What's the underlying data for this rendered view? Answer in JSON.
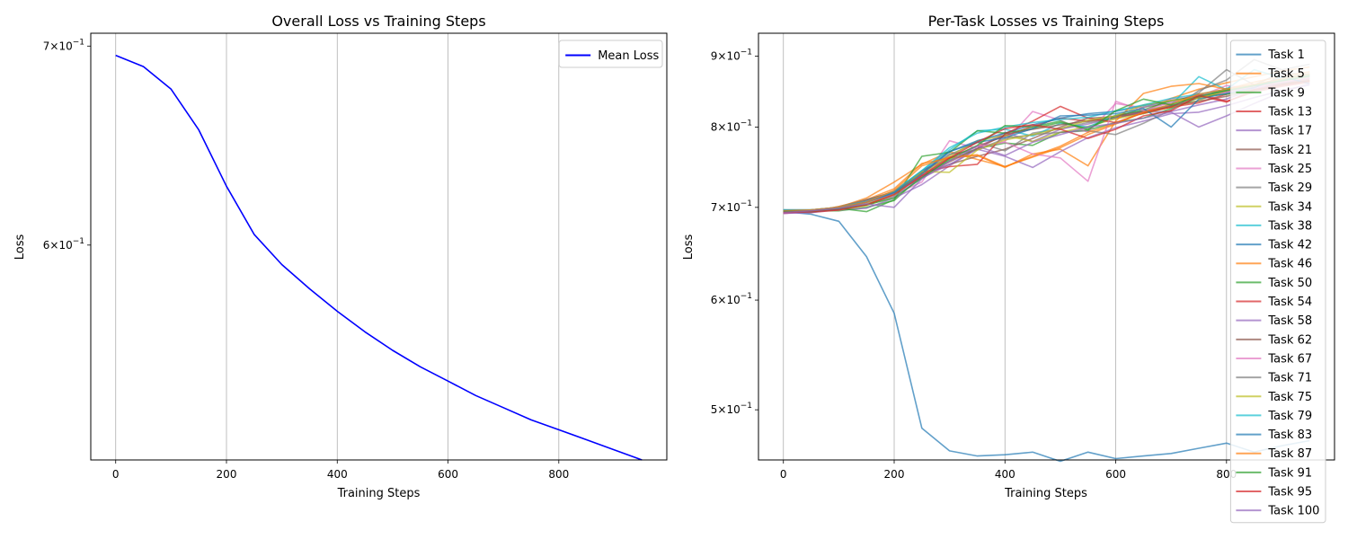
{
  "chart_data": [
    {
      "type": "line",
      "title": "Overall Loss vs Training Steps",
      "xlabel": "Training Steps",
      "ylabel": "Loss",
      "yscale": "log",
      "xlim": [
        -45,
        995
      ],
      "ylim": [
        0.508,
        0.707
      ],
      "xticks": [
        0,
        200,
        400,
        600,
        800
      ],
      "xtick_labels": [
        "0",
        "200",
        "400",
        "600",
        "800"
      ],
      "yticks": [
        {
          "value": 0.6,
          "base": "6",
          "exp": "−1"
        },
        {
          "value": 0.7,
          "base": "7",
          "exp": "−1"
        }
      ],
      "grid": "x-axis vertical lines",
      "legend": "top-right",
      "x": [
        0,
        50,
        100,
        150,
        200,
        250,
        300,
        350,
        400,
        450,
        500,
        550,
        600,
        650,
        700,
        750,
        800,
        850,
        900,
        950
      ],
      "series": [
        {
          "name": "Mean Loss",
          "color": "#0000ff",
          "values": [
            0.695,
            0.689,
            0.677,
            0.656,
            0.628,
            0.605,
            0.591,
            0.58,
            0.57,
            0.561,
            0.553,
            0.546,
            0.54,
            0.534,
            0.529,
            0.524,
            0.52,
            0.516,
            0.512,
            0.508
          ]
        }
      ]
    },
    {
      "type": "line",
      "title": "Per-Task Losses vs Training Steps",
      "xlabel": "Training Steps",
      "ylabel": "Loss",
      "yscale": "log",
      "xlim": [
        -45,
        995
      ],
      "ylim": [
        0.46,
        0.935
      ],
      "xticks": [
        0,
        200,
        400,
        600,
        800
      ],
      "xtick_labels": [
        "0",
        "200",
        "400",
        "600",
        "800"
      ],
      "yticks": [
        {
          "value": 0.5,
          "base": "5",
          "exp": "−1"
        },
        {
          "value": 0.6,
          "base": "6",
          "exp": "−1"
        },
        {
          "value": 0.7,
          "base": "7",
          "exp": "−1"
        },
        {
          "value": 0.8,
          "base": "8",
          "exp": "−1"
        },
        {
          "value": 0.9,
          "base": "9",
          "exp": "−1"
        }
      ],
      "grid": "x-axis vertical lines",
      "legend": "top-right",
      "x": [
        0,
        50,
        100,
        150,
        200,
        250,
        300,
        350,
        400,
        450,
        500,
        550,
        600,
        650,
        700,
        750,
        800,
        850,
        900,
        950
      ],
      "series": [
        {
          "name": "Task 1",
          "color": "#1f77b4",
          "values": [
            0.695,
            0.692,
            0.684,
            0.645,
            0.587,
            0.485,
            0.467,
            0.463,
            0.464,
            0.466,
            0.459,
            0.466,
            0.461,
            0.463,
            0.465,
            0.469,
            0.473,
            0.466,
            0.471,
            0.475
          ]
        },
        {
          "name": "Task 5",
          "color": "#ff7f0e",
          "values": [
            0.696,
            0.697,
            0.7,
            0.711,
            0.73,
            0.752,
            0.768,
            0.758,
            0.749,
            0.761,
            0.773,
            0.79,
            0.804,
            0.82,
            0.839,
            0.852,
            0.861,
            0.87,
            0.878,
            0.884
          ]
        },
        {
          "name": "Task 9",
          "color": "#2ca02c",
          "values": [
            0.694,
            0.696,
            0.696,
            0.7,
            0.708,
            0.738,
            0.757,
            0.772,
            0.779,
            0.776,
            0.793,
            0.796,
            0.806,
            0.812,
            0.825,
            0.84,
            0.853,
            0.858,
            0.866,
            0.87
          ]
        },
        {
          "name": "Task 13",
          "color": "#d62728",
          "values": [
            0.693,
            0.695,
            0.698,
            0.706,
            0.716,
            0.744,
            0.76,
            0.775,
            0.788,
            0.801,
            0.812,
            0.808,
            0.812,
            0.821,
            0.827,
            0.833,
            0.845,
            0.852,
            0.86,
            0.867
          ]
        },
        {
          "name": "Task 17",
          "color": "#9467bd",
          "values": [
            0.695,
            0.697,
            0.697,
            0.699,
            0.711,
            0.727,
            0.75,
            0.772,
            0.793,
            0.781,
            0.797,
            0.804,
            0.813,
            0.82,
            0.821,
            0.83,
            0.838,
            0.852,
            0.861,
            0.868
          ]
        },
        {
          "name": "Task 21",
          "color": "#8c564b",
          "values": [
            0.696,
            0.694,
            0.7,
            0.709,
            0.718,
            0.738,
            0.752,
            0.762,
            0.771,
            0.785,
            0.8,
            0.812,
            0.814,
            0.818,
            0.828,
            0.84,
            0.848,
            0.856,
            0.86,
            0.864
          ]
        },
        {
          "name": "Task 25",
          "color": "#e377c2",
          "values": [
            0.693,
            0.695,
            0.699,
            0.705,
            0.715,
            0.73,
            0.782,
            0.772,
            0.781,
            0.821,
            0.809,
            0.793,
            0.832,
            0.826,
            0.838,
            0.842,
            0.857,
            0.853,
            0.865,
            0.87
          ]
        },
        {
          "name": "Task 29",
          "color": "#7f7f7f",
          "values": [
            0.695,
            0.695,
            0.701,
            0.709,
            0.717,
            0.736,
            0.764,
            0.78,
            0.769,
            0.792,
            0.798,
            0.806,
            0.812,
            0.827,
            0.832,
            0.847,
            0.88,
            0.858,
            0.876,
            0.872
          ]
        },
        {
          "name": "Task 34",
          "color": "#bcbd22",
          "values": [
            0.694,
            0.697,
            0.697,
            0.702,
            0.713,
            0.74,
            0.762,
            0.782,
            0.789,
            0.781,
            0.793,
            0.801,
            0.811,
            0.818,
            0.827,
            0.836,
            0.851,
            0.856,
            0.863,
            0.869
          ]
        },
        {
          "name": "Task 38",
          "color": "#17becf",
          "values": [
            0.697,
            0.696,
            0.698,
            0.706,
            0.719,
            0.744,
            0.77,
            0.795,
            0.797,
            0.788,
            0.805,
            0.8,
            0.816,
            0.822,
            0.83,
            0.87,
            0.851,
            0.857,
            0.866,
            0.872
          ]
        },
        {
          "name": "Task 42",
          "color": "#1f77b4",
          "values": [
            0.697,
            0.697,
            0.7,
            0.706,
            0.718,
            0.742,
            0.768,
            0.782,
            0.792,
            0.803,
            0.812,
            0.818,
            0.821,
            0.829,
            0.835,
            0.842,
            0.85,
            0.857,
            0.864,
            0.871
          ]
        },
        {
          "name": "Task 46",
          "color": "#ff7f0e",
          "values": [
            0.694,
            0.695,
            0.701,
            0.709,
            0.722,
            0.753,
            0.76,
            0.763,
            0.748,
            0.765,
            0.771,
            0.75,
            0.808,
            0.846,
            0.856,
            0.86,
            0.852,
            0.862,
            0.87,
            0.877
          ]
        },
        {
          "name": "Task 50",
          "color": "#2ca02c",
          "values": [
            0.696,
            0.696,
            0.699,
            0.695,
            0.709,
            0.762,
            0.767,
            0.795,
            0.792,
            0.798,
            0.806,
            0.798,
            0.815,
            0.823,
            0.836,
            0.842,
            0.845,
            0.85,
            0.858,
            0.864
          ]
        },
        {
          "name": "Task 54",
          "color": "#d62728",
          "values": [
            0.695,
            0.694,
            0.697,
            0.708,
            0.719,
            0.742,
            0.749,
            0.752,
            0.791,
            0.808,
            0.828,
            0.812,
            0.806,
            0.819,
            0.827,
            0.845,
            0.835,
            0.848,
            0.856,
            0.862
          ]
        },
        {
          "name": "Task 58",
          "color": "#9467bd",
          "values": [
            0.693,
            0.694,
            0.698,
            0.704,
            0.713,
            0.735,
            0.752,
            0.771,
            0.762,
            0.748,
            0.768,
            0.786,
            0.799,
            0.808,
            0.818,
            0.82,
            0.829,
            0.84,
            0.85,
            0.858
          ]
        },
        {
          "name": "Task 62",
          "color": "#8c564b",
          "values": [
            0.696,
            0.695,
            0.699,
            0.703,
            0.716,
            0.737,
            0.755,
            0.772,
            0.79,
            0.797,
            0.803,
            0.808,
            0.815,
            0.821,
            0.829,
            0.835,
            0.842,
            0.85,
            0.858,
            0.865
          ]
        },
        {
          "name": "Task 67",
          "color": "#e377c2",
          "values": [
            0.695,
            0.696,
            0.697,
            0.706,
            0.716,
            0.738,
            0.76,
            0.775,
            0.78,
            0.765,
            0.76,
            0.731,
            0.835,
            0.822,
            0.834,
            0.842,
            0.848,
            0.855,
            0.862,
            0.868
          ]
        },
        {
          "name": "Task 71",
          "color": "#7f7f7f",
          "values": [
            0.697,
            0.697,
            0.7,
            0.709,
            0.718,
            0.741,
            0.765,
            0.77,
            0.785,
            0.79,
            0.793,
            0.795,
            0.79,
            0.805,
            0.823,
            0.85,
            0.865,
            0.895,
            0.88,
            0.888
          ]
        },
        {
          "name": "Task 75",
          "color": "#bcbd22",
          "values": [
            0.696,
            0.695,
            0.699,
            0.704,
            0.715,
            0.743,
            0.742,
            0.77,
            0.783,
            0.79,
            0.798,
            0.809,
            0.815,
            0.83,
            0.836,
            0.839,
            0.85,
            0.858,
            0.866,
            0.873
          ]
        },
        {
          "name": "Task 79",
          "color": "#17becf",
          "values": [
            0.697,
            0.697,
            0.7,
            0.707,
            0.719,
            0.744,
            0.773,
            0.792,
            0.8,
            0.806,
            0.81,
            0.813,
            0.822,
            0.83,
            0.839,
            0.845,
            0.852,
            0.88,
            0.868,
            0.874
          ]
        },
        {
          "name": "Task 83",
          "color": "#1f77b4",
          "values": [
            0.696,
            0.696,
            0.699,
            0.706,
            0.717,
            0.74,
            0.768,
            0.78,
            0.786,
            0.798,
            0.815,
            0.816,
            0.818,
            0.825,
            0.8,
            0.838,
            0.846,
            0.854,
            0.87,
            0.86
          ]
        },
        {
          "name": "Task 87",
          "color": "#ff7f0e",
          "values": [
            0.696,
            0.697,
            0.7,
            0.706,
            0.72,
            0.75,
            0.761,
            0.764,
            0.749,
            0.762,
            0.775,
            0.793,
            0.805,
            0.82,
            0.831,
            0.845,
            0.852,
            0.859,
            0.867,
            0.874
          ]
        },
        {
          "name": "Task 91",
          "color": "#2ca02c",
          "values": [
            0.695,
            0.695,
            0.698,
            0.703,
            0.711,
            0.735,
            0.759,
            0.776,
            0.802,
            0.8,
            0.808,
            0.796,
            0.822,
            0.838,
            0.83,
            0.842,
            0.85,
            0.857,
            0.864,
            0.871
          ]
        },
        {
          "name": "Task 95",
          "color": "#d62728",
          "values": [
            0.694,
            0.695,
            0.697,
            0.703,
            0.715,
            0.738,
            0.76,
            0.78,
            0.798,
            0.803,
            0.797,
            0.785,
            0.797,
            0.815,
            0.822,
            0.843,
            0.834,
            0.851,
            0.858,
            0.864
          ]
        },
        {
          "name": "Task 100",
          "color": "#9467bd",
          "values": [
            0.694,
            0.696,
            0.699,
            0.704,
            0.7,
            0.734,
            0.756,
            0.775,
            0.763,
            0.78,
            0.79,
            0.8,
            0.805,
            0.812,
            0.82,
            0.8,
            0.815,
            0.832,
            0.848,
            0.86
          ]
        }
      ]
    }
  ]
}
